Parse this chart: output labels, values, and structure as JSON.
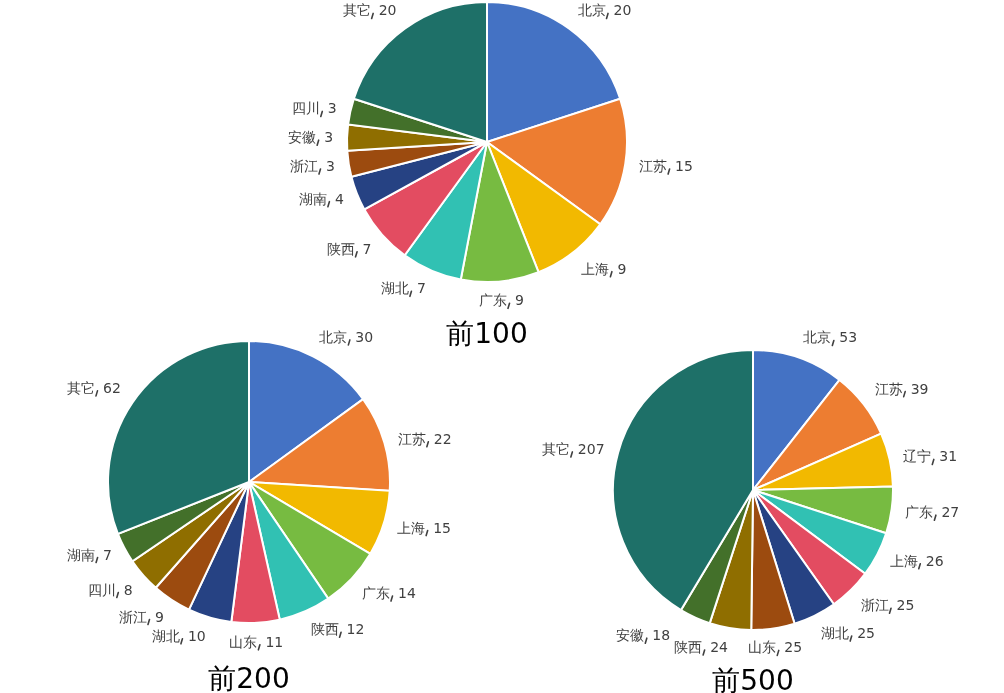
{
  "chart_data": [
    {
      "type": "pie",
      "title": "前100",
      "categories": [
        "北京",
        "江苏",
        "上海",
        "广东",
        "湖北",
        "陕西",
        "湖南",
        "浙江",
        "安徽",
        "四川",
        "其它"
      ],
      "values": [
        20,
        15,
        9,
        9,
        7,
        7,
        4,
        3,
        3,
        3,
        20
      ],
      "colors": [
        "#4472c4",
        "#ed7d31",
        "#f2b900",
        "#77bb41",
        "#31c1b3",
        "#e34c61",
        "#264283",
        "#9c4b0f",
        "#8f6e00",
        "#43702a",
        "#1e7068"
      ],
      "data_labels": true
    },
    {
      "type": "pie",
      "title": "前200",
      "categories": [
        "北京",
        "江苏",
        "上海",
        "广东",
        "陕西",
        "山东",
        "湖北",
        "浙江",
        "四川",
        "湖南",
        "其它"
      ],
      "values": [
        30,
        22,
        15,
        14,
        12,
        11,
        10,
        9,
        8,
        7,
        62
      ],
      "colors": [
        "#4472c4",
        "#ed7d31",
        "#f2b900",
        "#77bb41",
        "#31c1b3",
        "#e34c61",
        "#264283",
        "#9c4b0f",
        "#8f6e00",
        "#43702a",
        "#1e7068"
      ],
      "data_labels": true
    },
    {
      "type": "pie",
      "title": "前500",
      "categories": [
        "北京",
        "江苏",
        "辽宁",
        "广东",
        "上海",
        "浙江",
        "湖北",
        "山东",
        "陕西",
        "安徽",
        "其它"
      ],
      "values": [
        53,
        39,
        31,
        27,
        26,
        25,
        25,
        25,
        24,
        18,
        207
      ],
      "colors": [
        "#4472c4",
        "#ed7d31",
        "#f2b900",
        "#77bb41",
        "#31c1b3",
        "#e34c61",
        "#264283",
        "#9c4b0f",
        "#8f6e00",
        "#43702a",
        "#1e7068"
      ],
      "data_labels": true
    }
  ]
}
